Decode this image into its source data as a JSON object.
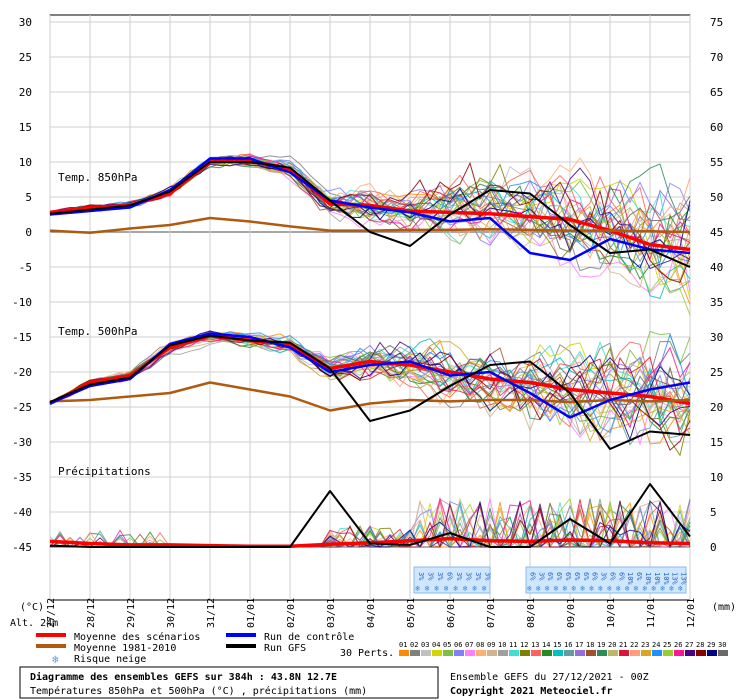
{
  "chart_data": {
    "type": "line",
    "title": "Diagramme des ensembles GEFS sur 384h : 43.8N 12.7E",
    "subtitle": "Températures 850hPa et 500hPa (°C) , précipitations (mm)",
    "run_info": "Ensemble GEFS du 27/12/2021 - 00Z",
    "copyright": "Copyright 2021 Meteociel.fr",
    "left_axis": {
      "unit_label": "(°C)",
      "ticks": [
        30,
        25,
        20,
        15,
        10,
        5,
        0,
        -5,
        -10,
        -15,
        -20,
        -25,
        -30,
        -35,
        -40,
        -45
      ],
      "ylim": [
        -45,
        30
      ]
    },
    "right_axis": {
      "unit_label": "(mm)",
      "ticks": [
        75,
        70,
        65,
        60,
        55,
        50,
        45,
        40,
        35,
        30,
        25,
        20,
        15,
        10,
        5,
        0
      ]
    },
    "altitude_label": "Alt. 24m",
    "dates": [
      "27/12",
      "28/12",
      "29/12",
      "30/12",
      "31/12",
      "01/01",
      "02/01",
      "03/01",
      "04/01",
      "05/01",
      "06/01",
      "07/01",
      "08/01",
      "09/01",
      "10/01",
      "11/01",
      "12/01"
    ],
    "panel_labels": {
      "t850": "Temp. 850hPa",
      "t500": "Temp. 500hPa",
      "precip": "Précipitations"
    },
    "series": [
      {
        "name": "Moyenne des scénarios",
        "color": "#ff0000",
        "t850": [
          2.8,
          3.5,
          3.8,
          5.5,
          10.0,
          10.2,
          9.0,
          4.0,
          3.8,
          3.0,
          2.8,
          2.6,
          2.2,
          1.8,
          0.2,
          -1.8,
          -2.5
        ],
        "t500": [
          -24.5,
          -21.5,
          -20.5,
          -16.5,
          -14.8,
          -15.5,
          -16.0,
          -19.5,
          -18.5,
          -19.0,
          -20.0,
          -21.0,
          -21.5,
          -22.5,
          -23.0,
          -23.5,
          -24.5
        ],
        "precip": [
          0.8,
          0.5,
          0.3,
          0.3,
          0.2,
          0.1,
          0.1,
          0.4,
          0.6,
          0.9,
          1.2,
          0.9,
          0.8,
          1.0,
          0.9,
          0.6,
          0.5
        ]
      },
      {
        "name": "Moyenne 1981-2010",
        "color": "#b05a10",
        "t850": [
          0.2,
          -0.1,
          0.5,
          1.0,
          2.0,
          1.5,
          0.8,
          0.2,
          0.2,
          0.3,
          0.3,
          0.4,
          0.3,
          0.2,
          0.2,
          0.1,
          0.0
        ],
        "t500": [
          -24.2,
          -24.0,
          -23.5,
          -23.0,
          -21.5,
          -22.5,
          -23.5,
          -25.5,
          -24.5,
          -24.0,
          -24.2,
          -24.0,
          -24.0,
          -24.3,
          -24.0,
          -24.2,
          -24.0
        ]
      },
      {
        "name": "Run de contrôle",
        "color": "#0000ff",
        "t850": [
          2.5,
          3.0,
          3.5,
          6.0,
          10.5,
          10.5,
          8.5,
          4.5,
          3.5,
          2.8,
          1.5,
          2.0,
          -3.0,
          -4.0,
          -1.0,
          -2.5,
          -3.0
        ],
        "t500": [
          -24.5,
          -22.0,
          -21.0,
          -16.0,
          -14.5,
          -15.0,
          -16.5,
          -20.0,
          -19.0,
          -18.5,
          -20.5,
          -20.0,
          -23.0,
          -26.5,
          -24.0,
          -22.5,
          -21.5
        ]
      },
      {
        "name": "Run GFS",
        "color": "#000000",
        "t850": [
          2.6,
          3.2,
          3.8,
          5.8,
          10.0,
          10.0,
          9.2,
          4.5,
          0.0,
          -2.0,
          2.5,
          6.0,
          5.5,
          1.0,
          -3.0,
          -2.5,
          -5.0
        ],
        "t500": [
          -24.3,
          -21.8,
          -20.8,
          -16.2,
          -14.8,
          -15.5,
          -15.8,
          -19.5,
          -27.0,
          -25.5,
          -22.0,
          -19.0,
          -18.5,
          -23.0,
          -31.0,
          -28.5,
          -29.0
        ],
        "precip": [
          0.2,
          0.0,
          0.0,
          0.0,
          0.0,
          0.0,
          0.0,
          8.0,
          0.5,
          0.3,
          2.0,
          0.0,
          0.0,
          4.0,
          0.5,
          9.0,
          1.5
        ]
      }
    ],
    "perturbations_count": 30,
    "snow_risk": {
      "windows": [
        {
          "start": 9.1,
          "end": 11.0,
          "values": [
            "3%",
            "3%",
            "3%",
            "6%",
            "3%",
            "3%",
            "3%",
            "3%"
          ]
        },
        {
          "start": 11.9,
          "end": 15.9,
          "values": [
            "6%",
            "3%",
            "6%",
            "6%",
            "6%",
            "6%",
            "6%",
            "6%",
            "3%",
            "6%",
            "6%",
            "10%",
            "6%",
            "10%",
            "10%",
            "10%",
            "13%",
            "13%"
          ]
        }
      ]
    }
  },
  "legend": {
    "mean_scenarios": "Moyenne des scénarios",
    "mean_climate": "Moyenne 1981-2010",
    "snow_risk": "Risque neige",
    "control_run": "Run de contrôle",
    "gfs_run": "Run GFS",
    "pert_label": "30 Perts.",
    "pert_ids": [
      "01",
      "02",
      "03",
      "04",
      "05",
      "06",
      "07",
      "08",
      "09",
      "10",
      "11",
      "12",
      "13",
      "14",
      "15",
      "16",
      "17",
      "18",
      "19",
      "20",
      "21",
      "22",
      "23",
      "24",
      "25",
      "26",
      "27",
      "28",
      "29",
      "30"
    ],
    "pert_colors": [
      "#ff8c00",
      "#808080",
      "#c0c0c0",
      "#d4d400",
      "#7fbf3f",
      "#8080ff",
      "#ff80ff",
      "#ffb070",
      "#d2b48c",
      "#a0a0a0",
      "#40e0d0",
      "#808000",
      "#ff6060",
      "#228b22",
      "#00c0c0",
      "#5f9ea0",
      "#9370db",
      "#a0522d",
      "#2e8b57",
      "#bdb76b",
      "#dc143c",
      "#ffa07a",
      "#daa520",
      "#1e90ff",
      "#9acd32",
      "#ff1493",
      "#4b0082",
      "#8b0000",
      "#000080",
      "#696969"
    ]
  },
  "footer": {
    "title": "Diagramme des ensembles GEFS sur 384h : 43.8N 12.7E",
    "subtitle": "Températures 850hPa et 500hPa (°C) , précipitations (mm)",
    "run_info": "Ensemble GEFS du 27/12/2021 - 00Z",
    "copyright": "Copyright 2021 Meteociel.fr"
  }
}
